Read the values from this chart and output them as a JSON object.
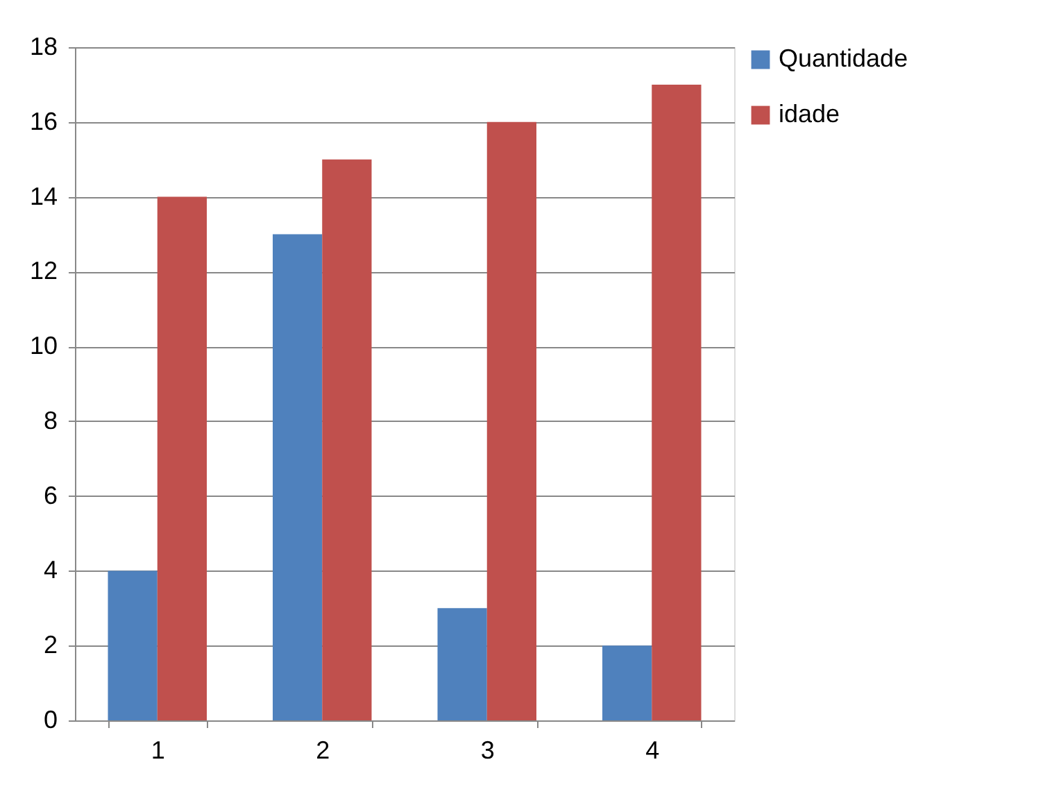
{
  "chart_data": {
    "type": "bar",
    "categories": [
      "1",
      "2",
      "3",
      "4"
    ],
    "series": [
      {
        "name": "Quantidade",
        "color": "#4f81bd",
        "values": [
          4,
          13,
          3,
          2
        ]
      },
      {
        "name": "idade",
        "color": "#c0504d",
        "values": [
          14,
          15,
          16,
          17
        ]
      }
    ],
    "ylim": [
      0,
      18
    ],
    "yticks": [
      0,
      2,
      4,
      6,
      8,
      10,
      12,
      14,
      16,
      18
    ],
    "grid": "y",
    "legend": "right"
  }
}
